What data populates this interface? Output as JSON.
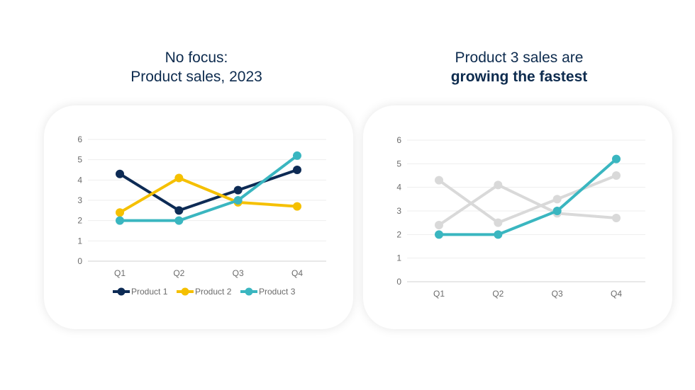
{
  "colors": {
    "product1": "#0d2b55",
    "product2": "#f5c000",
    "product3": "#3ab6c0",
    "muted": "#d9d9d9",
    "title": "#0d2b4e",
    "grid": "#eeeeee",
    "axis": "#d0d0d0"
  },
  "titles": {
    "left_line1": "No focus:",
    "left_line2": "Product sales, 2023",
    "right_line1": "Product 3 sales are",
    "right_line2": "growing the fastest"
  },
  "chart_data": [
    {
      "type": "line",
      "title": "No focus: Product sales, 2023",
      "categories": [
        "Q1",
        "Q2",
        "Q3",
        "Q4"
      ],
      "yticks": [
        "0",
        "1",
        "2",
        "3",
        "4",
        "5",
        "6"
      ],
      "ylim": [
        0,
        6
      ],
      "legend": "bottom",
      "series": [
        {
          "name": "Product 1",
          "values": [
            4.3,
            2.5,
            3.5,
            4.5
          ],
          "color": "#0d2b55"
        },
        {
          "name": "Product 2",
          "values": [
            2.4,
            4.1,
            2.9,
            2.7
          ],
          "color": "#f5c000"
        },
        {
          "name": "Product 3",
          "values": [
            2.0,
            2.0,
            3.0,
            5.2
          ],
          "color": "#3ab6c0"
        }
      ]
    },
    {
      "type": "line",
      "title": "Product 3 sales are growing the fastest",
      "categories": [
        "Q1",
        "Q2",
        "Q3",
        "Q4"
      ],
      "yticks": [
        "0",
        "1",
        "2",
        "3",
        "4",
        "5",
        "6"
      ],
      "ylim": [
        0,
        6
      ],
      "legend": "none",
      "series": [
        {
          "name": "Product 1",
          "values": [
            4.3,
            2.5,
            3.5,
            4.5
          ],
          "color": "#d9d9d9"
        },
        {
          "name": "Product 2",
          "values": [
            2.4,
            4.1,
            2.9,
            2.7
          ],
          "color": "#d9d9d9"
        },
        {
          "name": "Product 3",
          "values": [
            2.0,
            2.0,
            3.0,
            5.2
          ],
          "color": "#3ab6c0"
        }
      ]
    }
  ]
}
